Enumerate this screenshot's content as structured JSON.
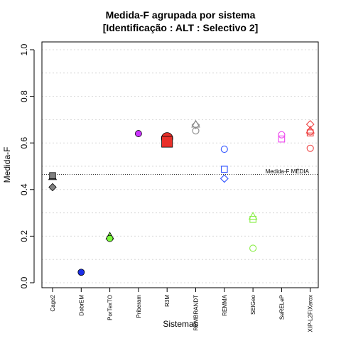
{
  "chart_data": {
    "type": "scatter",
    "title_line1": "Medida-F agrupada por sistema",
    "title_line2": "[Identificação : ALT : Selectivo 2]",
    "xlabel": "Sistemas",
    "ylabel": "Medida-F",
    "ylim": [
      0,
      1
    ],
    "yticks": [
      "0.0",
      "0.2",
      "0.4",
      "0.6",
      "0.8",
      "1.0"
    ],
    "grid": "horizontal dotted",
    "categories": [
      "Cage2",
      "DobrEM",
      "PorTexTO",
      "Priberam",
      "R3M",
      "REMBRANDT",
      "REMMA",
      "SEIGeo",
      "SeRELeP",
      "XIP-L2F/Xerox"
    ],
    "reference_line": {
      "label": "Medida-F MÉDIA",
      "value": 0.465
    },
    "points": [
      {
        "category": "Cage2",
        "y": 0.455,
        "shape": "triangle",
        "color": "#808080",
        "filled": true
      },
      {
        "category": "Cage2",
        "y": 0.46,
        "shape": "square",
        "color": "#808080",
        "filled": true
      },
      {
        "category": "Cage2",
        "y": 0.41,
        "shape": "diamond",
        "color": "#808080",
        "filled": true
      },
      {
        "category": "DobrEM",
        "y": 0.045,
        "shape": "circle",
        "color": "#1a2ee8",
        "filled": true
      },
      {
        "category": "PorTexTO",
        "y": 0.2,
        "shape": "triangle",
        "color": "#7cfc3c",
        "filled": true
      },
      {
        "category": "PorTexTO",
        "y": 0.19,
        "shape": "circle",
        "color": "#7cfc3c",
        "filled": true
      },
      {
        "category": "Priberam",
        "y": 0.64,
        "shape": "circle",
        "color": "#cc33ff",
        "filled": true
      },
      {
        "category": "R3M",
        "y": 0.62,
        "shape": "circle",
        "color": "#e8302a",
        "filled": true,
        "size": "large"
      },
      {
        "category": "R3M",
        "y": 0.605,
        "shape": "square",
        "color": "#e8302a",
        "filled": true,
        "size": "large"
      },
      {
        "category": "REMBRANDT",
        "y": 0.68,
        "shape": "triangle",
        "color": "#8c8c8c",
        "filled": false
      },
      {
        "category": "REMBRANDT",
        "y": 0.677,
        "shape": "diamond",
        "color": "#8c8c8c",
        "filled": false
      },
      {
        "category": "REMBRANDT",
        "y": 0.652,
        "shape": "circle",
        "color": "#8c8c8c",
        "filled": false
      },
      {
        "category": "REMMA",
        "y": 0.573,
        "shape": "circle",
        "color": "#3355ff",
        "filled": false
      },
      {
        "category": "REMMA",
        "y": 0.487,
        "shape": "square",
        "color": "#3355ff",
        "filled": false
      },
      {
        "category": "REMMA",
        "y": 0.447,
        "shape": "diamond",
        "color": "#3355ff",
        "filled": false
      },
      {
        "category": "SEIGeo",
        "y": 0.285,
        "shape": "triangle",
        "color": "#88ee44",
        "filled": false
      },
      {
        "category": "SEIGeo",
        "y": 0.272,
        "shape": "square",
        "color": "#88ee44",
        "filled": false
      },
      {
        "category": "SEIGeo",
        "y": 0.148,
        "shape": "circle",
        "color": "#88ee44",
        "filled": false
      },
      {
        "category": "SeRELeP",
        "y": 0.635,
        "shape": "circle",
        "color": "#ee44ee",
        "filled": false
      },
      {
        "category": "SeRELeP",
        "y": 0.617,
        "shape": "square",
        "color": "#ee44ee",
        "filled": false
      },
      {
        "category": "XIP-L2F/Xerox",
        "y": 0.68,
        "shape": "diamond",
        "color": "#ee4444",
        "filled": false
      },
      {
        "category": "XIP-L2F/Xerox",
        "y": 0.655,
        "shape": "triangle",
        "color": "#ee4444",
        "filled": false
      },
      {
        "category": "XIP-L2F/Xerox",
        "y": 0.648,
        "shape": "circle",
        "color": "#ee4444",
        "filled": false
      },
      {
        "category": "XIP-L2F/Xerox",
        "y": 0.643,
        "shape": "square",
        "color": "#ee4444",
        "filled": false
      },
      {
        "category": "XIP-L2F/Xerox",
        "y": 0.577,
        "shape": "circle",
        "color": "#ee4444",
        "filled": false
      }
    ]
  }
}
